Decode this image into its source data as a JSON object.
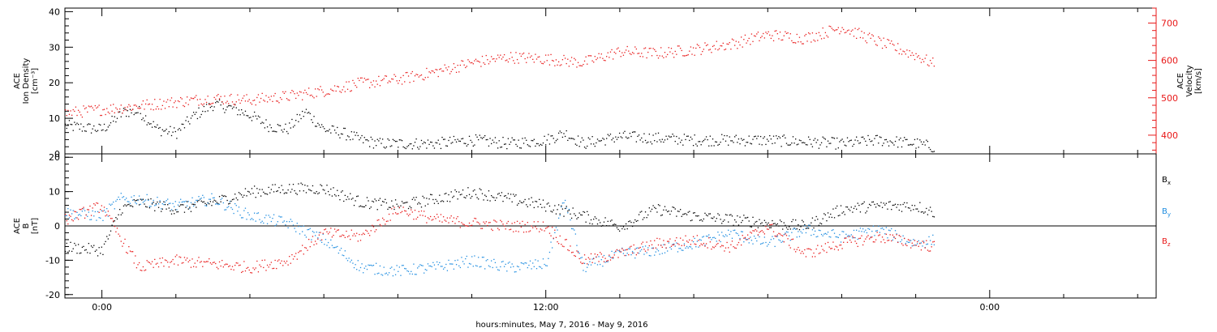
{
  "xlabel": "hours:minutes, May  7, 2016 - May  9, 2016",
  "xaxis": {
    "range_hours": [
      -1.0,
      28.5
    ],
    "major_ticks": [
      {
        "hour": 0,
        "label": "0:00"
      },
      {
        "hour": 12,
        "label": "12:00"
      },
      {
        "hour": 24,
        "label": "0:00"
      }
    ],
    "minor_tick_step_hours": 2
  },
  "colors": {
    "axes": "#000000",
    "density": "#000000",
    "velocity": "#e81818",
    "bx": "#000000",
    "by": "#1f8de0",
    "bz": "#e81818"
  },
  "chart_data": [
    {
      "type": "scatter",
      "panel": "top",
      "ylabel_left": [
        "ACE",
        "Ion Density",
        "[cm⁻³]"
      ],
      "ylabel_right": [
        "ACE",
        "Velocity",
        "[km/s]"
      ],
      "ylim_left": [
        0,
        41
      ],
      "yticks_left": [
        0,
        10,
        20,
        30,
        40
      ],
      "ylim_right": [
        350,
        740
      ],
      "yticks_right": [
        400,
        500,
        600,
        700
      ],
      "series": [
        {
          "axis": "left",
          "color_key": "density",
          "x": [
            -1.0,
            0,
            0.6,
            1.0,
            1.5,
            2.0,
            2.5,
            3.0,
            3.5,
            4.0,
            4.5,
            5.0,
            5.5,
            6.0,
            6.5,
            7.0,
            7.5,
            8.0,
            9.0,
            10.0,
            11.0,
            12.0,
            12.5,
            13.0,
            14.0,
            16.0,
            18.0,
            20.0,
            21.0,
            22.0,
            22.5
          ],
          "y": [
            8,
            7,
            12,
            12,
            7,
            6,
            11,
            14,
            13,
            11,
            8,
            7,
            12,
            7,
            6,
            4,
            3,
            3,
            3,
            4,
            3,
            4,
            6,
            3,
            5,
            4,
            4,
            3,
            4,
            3,
            2
          ]
        },
        {
          "axis": "right",
          "color_key": "velocity",
          "x": [
            -1.0,
            0,
            1.0,
            2.0,
            3.0,
            4.0,
            5.0,
            6.0,
            7.0,
            8.0,
            9.0,
            10.0,
            11.0,
            12.0,
            13.0,
            14.0,
            15.0,
            16.0,
            17.0,
            18.0,
            19.0,
            20.0,
            21.0,
            22.0,
            22.5
          ],
          "y": [
            460,
            470,
            480,
            490,
            500,
            495,
            505,
            520,
            540,
            550,
            570,
            595,
            610,
            605,
            595,
            625,
            620,
            630,
            645,
            670,
            660,
            690,
            650,
            615,
            590
          ]
        }
      ]
    },
    {
      "type": "scatter",
      "panel": "bottom",
      "ylabel_left": [
        "ACE",
        "B",
        "[nT]"
      ],
      "ylim": [
        -21,
        21
      ],
      "yticks": [
        -20,
        -10,
        0,
        10,
        20
      ],
      "zero_line": true,
      "series": [
        {
          "name": "B",
          "subscript": "x",
          "color_key": "bx",
          "x": [
            -1.0,
            0,
            0.5,
            1.0,
            2.0,
            3.0,
            4.0,
            5.0,
            6.0,
            7.0,
            8.0,
            9.0,
            10.0,
            11.0,
            12.0,
            13.0,
            14.0,
            15.0,
            16.0,
            17.0,
            18.0,
            19.0,
            20.0,
            21.0,
            22.0,
            22.5
          ],
          "y": [
            -6,
            -7,
            5,
            7,
            5,
            7,
            10,
            11,
            11,
            7,
            6,
            8,
            10,
            8,
            6,
            3,
            0,
            5,
            3,
            2,
            1,
            0,
            5,
            6,
            6,
            4
          ]
        },
        {
          "name": "B",
          "subscript": "y",
          "color_key": "by",
          "x": [
            -1.0,
            0,
            0.5,
            1.0,
            2.0,
            3.0,
            4.0,
            5.0,
            6.0,
            7.0,
            8.0,
            9.0,
            10.0,
            11.0,
            12.0,
            12.5,
            13.0,
            14.0,
            15.0,
            16.0,
            17.0,
            18.0,
            19.0,
            20.0,
            21.0,
            22.0,
            22.5
          ],
          "y": [
            4,
            3,
            8,
            8,
            6,
            8,
            3,
            1,
            -4,
            -12,
            -13,
            -12,
            -10,
            -12,
            -11,
            8,
            -12,
            -8,
            -7,
            -5,
            -2,
            -5,
            -1,
            -3,
            -1,
            -5,
            -4
          ]
        },
        {
          "name": "B",
          "subscript": "z",
          "color_key": "bz",
          "x": [
            -1.0,
            0,
            0.3,
            1.0,
            1.5,
            2.0,
            3.0,
            4.0,
            5.0,
            6.0,
            7.0,
            8.0,
            9.0,
            10.0,
            11.0,
            12.0,
            13.0,
            14.0,
            15.0,
            16.0,
            17.0,
            18.0,
            19.0,
            20.0,
            21.0,
            22.0,
            22.5
          ],
          "y": [
            2,
            6,
            0,
            -12,
            -11,
            -10,
            -11,
            -12,
            -10,
            -2,
            -3,
            5,
            2,
            1,
            0,
            0,
            -10,
            -8,
            -5,
            -4,
            -6,
            0,
            -8,
            -5,
            -3,
            -5,
            -6
          ]
        }
      ]
    }
  ]
}
